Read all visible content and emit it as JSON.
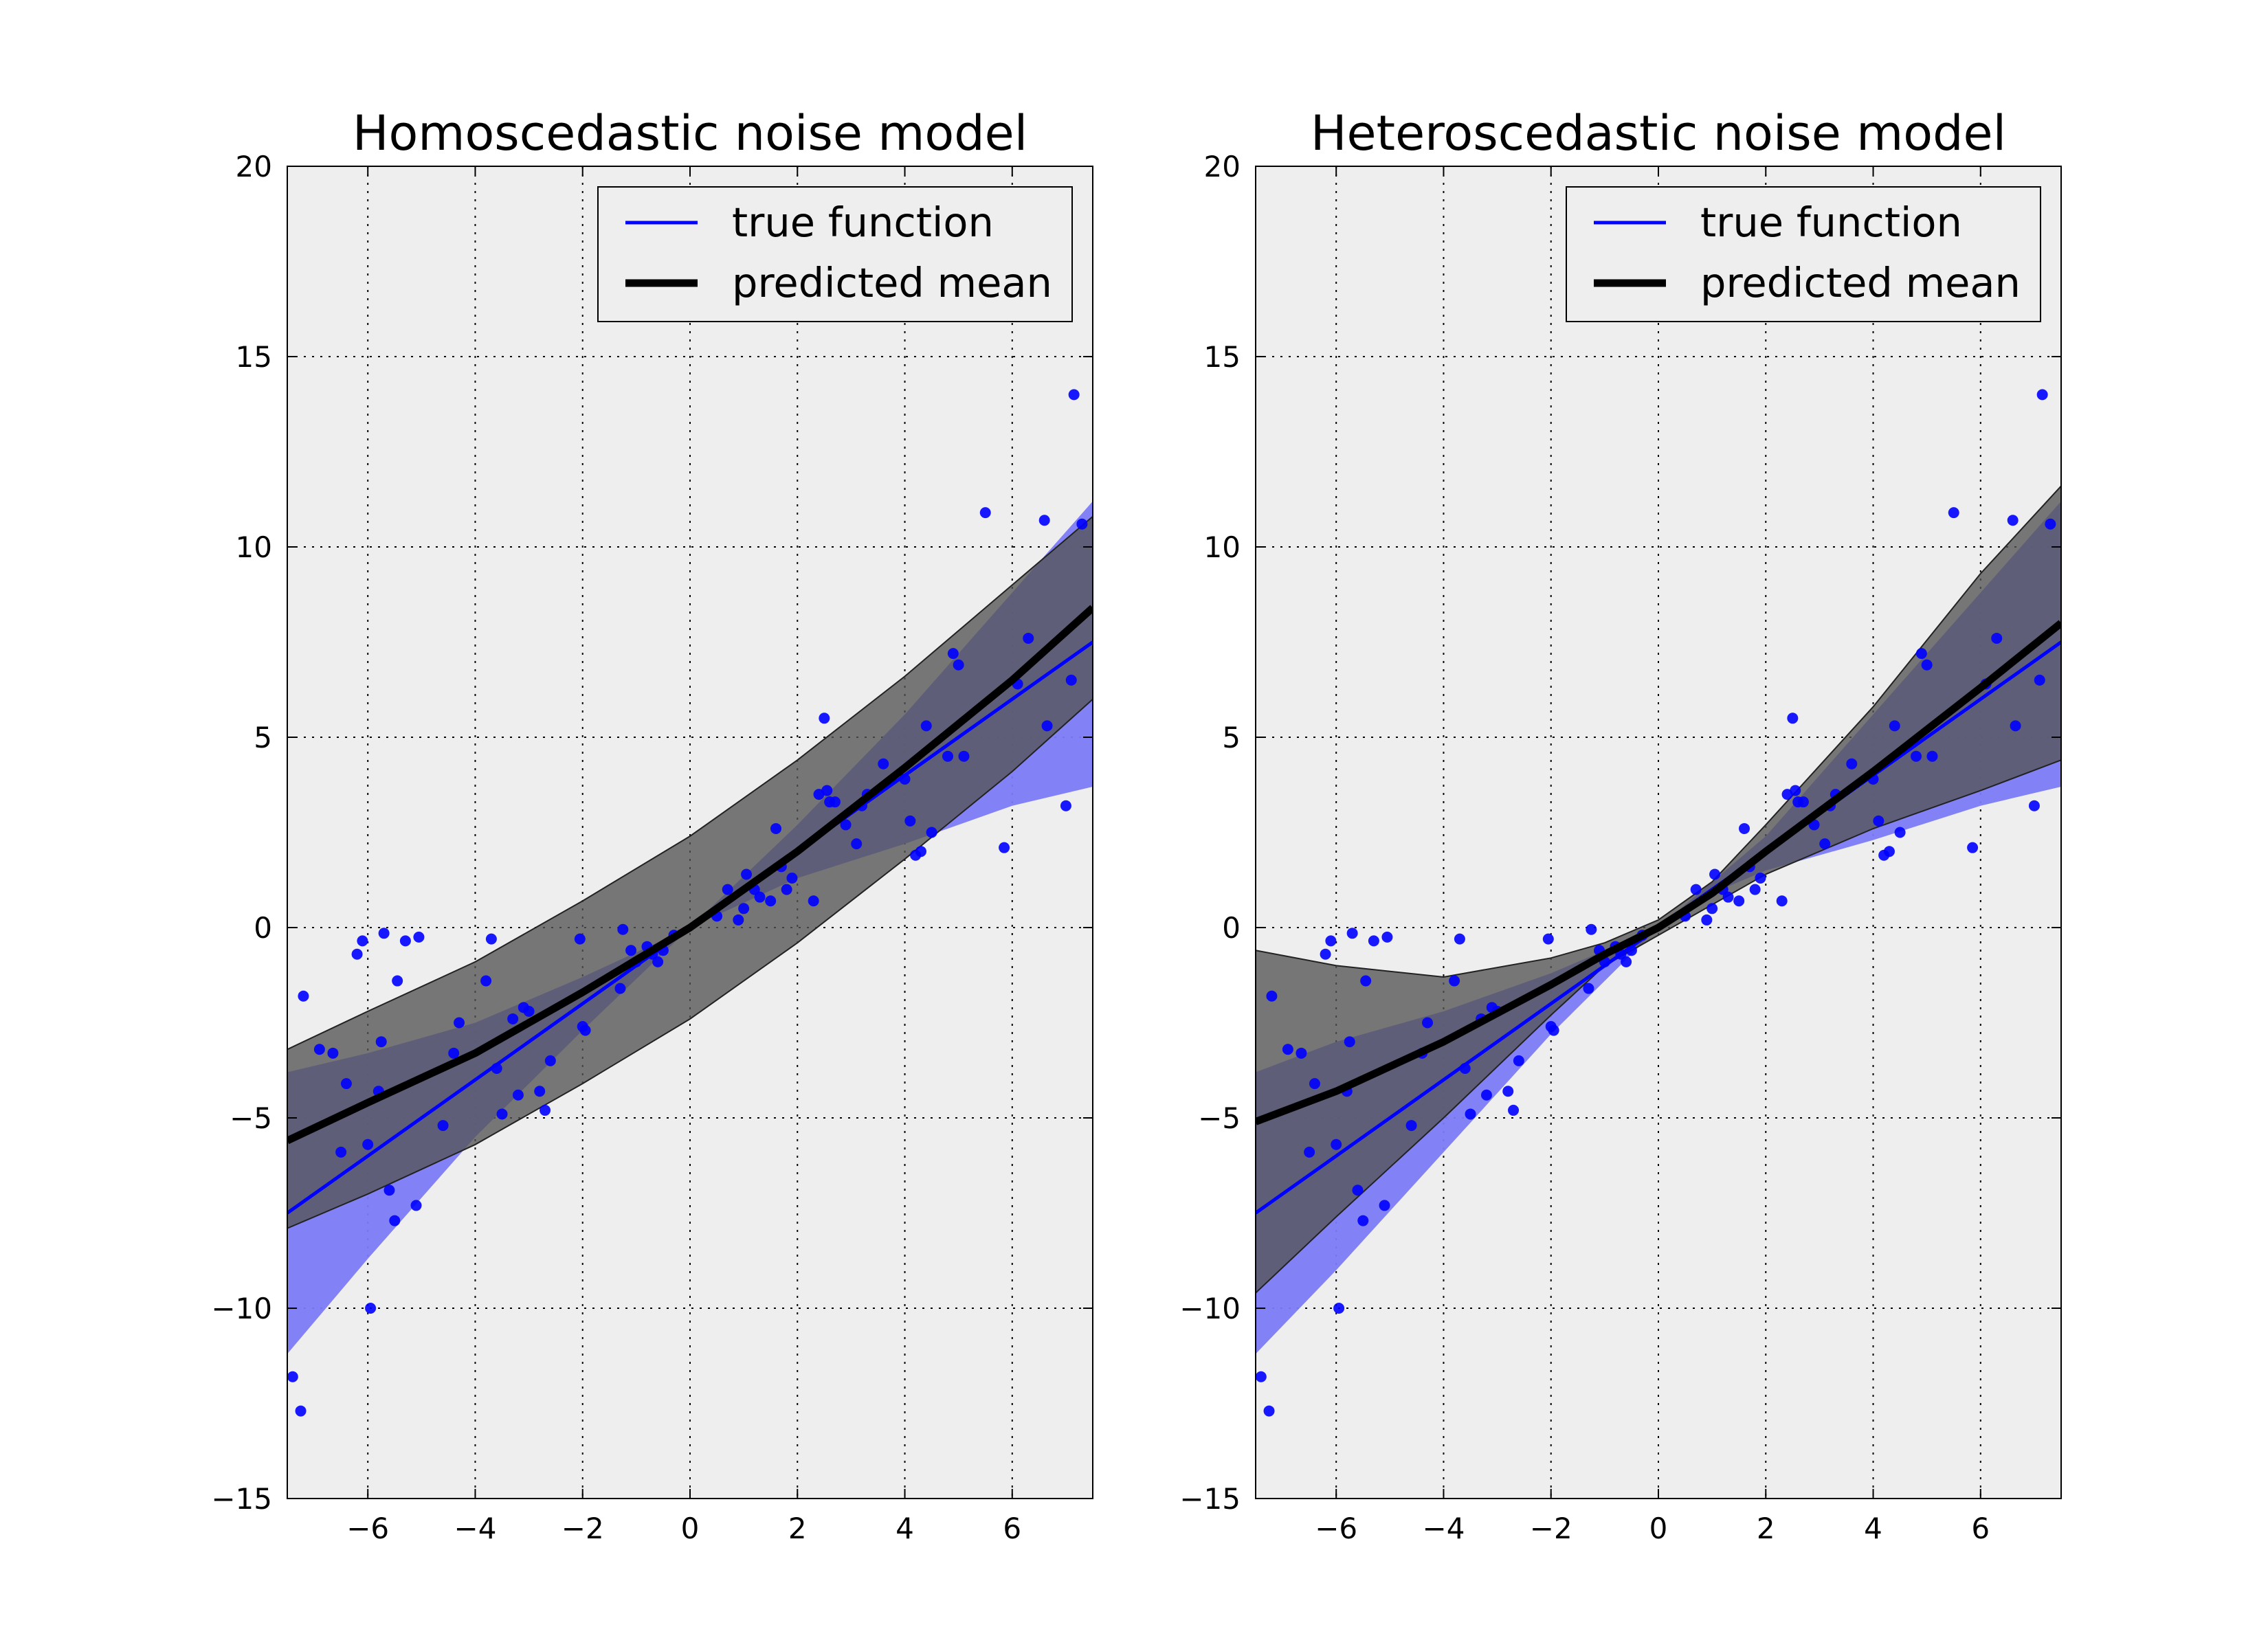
{
  "chart_data": [
    {
      "type": "line",
      "title": "Homoscedastic noise model",
      "xlabel": "",
      "ylabel": "",
      "xlim": [
        -7.5,
        7.5
      ],
      "ylim": [
        -15,
        20
      ],
      "xticks": [
        -6,
        -4,
        -2,
        0,
        2,
        4,
        6
      ],
      "yticks": [
        -15,
        -10,
        -5,
        0,
        5,
        10,
        15,
        20
      ],
      "grid": true,
      "legend_position": "top-right",
      "colors": {
        "true": "#0000ff",
        "mean": "#000000",
        "band_true": "#7b7bf5",
        "band_pred": "#555555",
        "overlap": "#2e2e6e",
        "axes_bg": "#eeeeee"
      },
      "series": [
        {
          "name": "true function",
          "x": [
            -7.5,
            -6,
            -4,
            -2,
            0,
            2,
            4,
            6,
            7.5
          ],
          "y": [
            -7.5,
            -6,
            -4,
            -2,
            0,
            2,
            4,
            6,
            7.5
          ],
          "band": {
            "lower": [
              -11.2,
              -8.7,
              -5.5,
              -2.7,
              0,
              1.3,
              2.2,
              3.2,
              3.7
            ],
            "upper": [
              -3.8,
              -3.3,
              -2.5,
              -1.3,
              0,
              2.7,
              5.6,
              8.8,
              11.2
            ]
          }
        },
        {
          "name": "predicted mean",
          "x": [
            -7.5,
            -6,
            -4,
            -2,
            0,
            2,
            4,
            6,
            7.5
          ],
          "y": [
            -5.6,
            -4.6,
            -3.3,
            -1.7,
            0,
            2.0,
            4.2,
            6.5,
            8.4
          ],
          "band": {
            "lower": [
              -7.9,
              -7.0,
              -5.7,
              -4.1,
              -2.4,
              -0.4,
              1.8,
              4.1,
              6.0
            ],
            "upper": [
              -3.2,
              -2.2,
              -0.9,
              0.7,
              2.4,
              4.4,
              6.6,
              9.0,
              10.8
            ]
          }
        }
      ],
      "scatter": {
        "x": [
          -7.4,
          -7.25,
          -7.2,
          -6.9,
          -6.65,
          -6.5,
          -6.4,
          -6.2,
          -6.1,
          -6.0,
          -5.95,
          -5.8,
          -5.75,
          -5.7,
          -5.6,
          -5.5,
          -5.45,
          -5.3,
          -5.1,
          -5.05,
          -4.6,
          -4.4,
          -4.3,
          -3.8,
          -3.7,
          -3.6,
          -3.5,
          -3.3,
          -3.2,
          -3.1,
          -3.0,
          -2.8,
          -2.7,
          -2.6,
          -2.05,
          -2.0,
          -1.95,
          -1.3,
          -1.25,
          -1.1,
          -1.0,
          -0.8,
          -0.7,
          -0.6,
          -0.5,
          -0.3,
          0.5,
          0.7,
          0.9,
          1.0,
          1.05,
          1.2,
          1.3,
          1.5,
          1.6,
          1.7,
          1.8,
          1.9,
          2.3,
          2.4,
          2.5,
          2.55,
          2.6,
          2.7,
          2.9,
          3.1,
          3.2,
          3.3,
          3.6,
          4.0,
          4.1,
          4.2,
          4.3,
          4.4,
          4.5,
          4.8,
          4.9,
          5.0,
          5.1,
          5.5,
          5.85,
          6.1,
          6.3,
          6.6,
          6.65,
          7.0,
          7.1,
          7.15,
          7.3
        ],
        "y": [
          -11.8,
          -12.7,
          -1.8,
          -3.2,
          -3.3,
          -5.9,
          -4.1,
          -0.7,
          -0.35,
          -5.7,
          -10.0,
          -4.3,
          -3.0,
          -0.15,
          -6.9,
          -7.7,
          -1.4,
          -0.35,
          -7.3,
          -0.25,
          -5.2,
          -3.3,
          -2.5,
          -1.4,
          -0.3,
          -3.7,
          -4.9,
          -2.4,
          -4.4,
          -2.1,
          -2.2,
          -4.3,
          -4.8,
          -3.5,
          -0.3,
          -2.6,
          -2.7,
          -1.6,
          -0.05,
          -0.6,
          -0.9,
          -0.5,
          -0.7,
          -0.9,
          -0.6,
          -0.2,
          0.3,
          1.0,
          0.2,
          0.5,
          1.4,
          1.0,
          0.8,
          0.7,
          2.6,
          1.6,
          1.0,
          1.3,
          0.7,
          3.5,
          5.5,
          3.6,
          3.3,
          3.3,
          2.7,
          2.2,
          3.2,
          3.5,
          4.3,
          3.9,
          2.8,
          1.9,
          2.0,
          5.3,
          2.5,
          4.5,
          7.2,
          6.9,
          4.5,
          10.9,
          2.1,
          6.4,
          7.6,
          10.7,
          5.3,
          3.2,
          6.5,
          14.0,
          10.6
        ]
      }
    },
    {
      "type": "line",
      "title": "Heteroscedastic noise model",
      "xlabel": "",
      "ylabel": "",
      "xlim": [
        -7.5,
        7.5
      ],
      "ylim": [
        -15,
        20
      ],
      "xticks": [
        -6,
        -4,
        -2,
        0,
        2,
        4,
        6
      ],
      "yticks": [
        -15,
        -10,
        -5,
        0,
        5,
        10,
        15,
        20
      ],
      "grid": true,
      "legend_position": "top-right",
      "colors": {
        "true": "#0000ff",
        "mean": "#000000",
        "band_true": "#7b7bf5",
        "band_pred": "#555555",
        "overlap": "#2e2e6e",
        "axes_bg": "#eeeeee"
      },
      "series": [
        {
          "name": "true function",
          "x": [
            -7.5,
            -6,
            -4,
            -2,
            -1,
            0,
            1,
            2,
            4,
            6,
            7.5
          ],
          "y": [
            -7.5,
            -6,
            -4,
            -2,
            -1,
            0,
            1,
            2,
            4,
            6,
            7.5
          ],
          "band": {
            "lower": [
              -11.2,
              -9.0,
              -5.9,
              -2.8,
              -1.4,
              0,
              0.9,
              1.5,
              2.3,
              3.2,
              3.7
            ],
            "upper": [
              -3.8,
              -3.0,
              -2.2,
              -1.2,
              -0.6,
              0,
              1.2,
              2.4,
              5.6,
              8.8,
              11.2
            ]
          }
        },
        {
          "name": "predicted mean",
          "x": [
            -7.5,
            -6,
            -4,
            -2,
            -1,
            0,
            1,
            2,
            4,
            6,
            7.5
          ],
          "y": [
            -5.1,
            -4.3,
            -3.0,
            -1.5,
            -0.7,
            0,
            0.9,
            2.0,
            4.1,
            6.3,
            8.0
          ],
          "band": {
            "lower": [
              -9.6,
              -7.6,
              -5.0,
              -2.3,
              -1.0,
              -0.2,
              0.6,
              1.4,
              2.6,
              3.6,
              4.4
            ],
            "upper": [
              -0.6,
              -1.0,
              -1.3,
              -0.8,
              -0.4,
              0.2,
              1.2,
              2.7,
              5.8,
              9.3,
              11.6
            ]
          }
        }
      ],
      "scatter": {
        "x": [
          -7.4,
          -7.25,
          -7.2,
          -6.9,
          -6.65,
          -6.5,
          -6.4,
          -6.2,
          -6.1,
          -6.0,
          -5.95,
          -5.8,
          -5.75,
          -5.7,
          -5.6,
          -5.5,
          -5.45,
          -5.3,
          -5.1,
          -5.05,
          -4.6,
          -4.4,
          -4.3,
          -3.8,
          -3.7,
          -3.6,
          -3.5,
          -3.3,
          -3.2,
          -3.1,
          -3.0,
          -2.8,
          -2.7,
          -2.6,
          -2.05,
          -2.0,
          -1.95,
          -1.3,
          -1.25,
          -1.1,
          -1.0,
          -0.8,
          -0.7,
          -0.6,
          -0.5,
          -0.3,
          0.5,
          0.7,
          0.9,
          1.0,
          1.05,
          1.2,
          1.3,
          1.5,
          1.6,
          1.7,
          1.8,
          1.9,
          2.3,
          2.4,
          2.5,
          2.55,
          2.6,
          2.7,
          2.9,
          3.1,
          3.2,
          3.3,
          3.6,
          4.0,
          4.1,
          4.2,
          4.3,
          4.4,
          4.5,
          4.8,
          4.9,
          5.0,
          5.1,
          5.5,
          5.85,
          6.1,
          6.3,
          6.6,
          6.65,
          7.0,
          7.1,
          7.15,
          7.3
        ],
        "y": [
          -11.8,
          -12.7,
          -1.8,
          -3.2,
          -3.3,
          -5.9,
          -4.1,
          -0.7,
          -0.35,
          -5.7,
          -10.0,
          -4.3,
          -3.0,
          -0.15,
          -6.9,
          -7.7,
          -1.4,
          -0.35,
          -7.3,
          -0.25,
          -5.2,
          -3.3,
          -2.5,
          -1.4,
          -0.3,
          -3.7,
          -4.9,
          -2.4,
          -4.4,
          -2.1,
          -2.2,
          -4.3,
          -4.8,
          -3.5,
          -0.3,
          -2.6,
          -2.7,
          -1.6,
          -0.05,
          -0.6,
          -0.9,
          -0.5,
          -0.7,
          -0.9,
          -0.6,
          -0.2,
          0.3,
          1.0,
          0.2,
          0.5,
          1.4,
          1.0,
          0.8,
          0.7,
          2.6,
          1.6,
          1.0,
          1.3,
          0.7,
          3.5,
          5.5,
          3.6,
          3.3,
          3.3,
          2.7,
          2.2,
          3.2,
          3.5,
          4.3,
          3.9,
          2.8,
          1.9,
          2.0,
          5.3,
          2.5,
          4.5,
          7.2,
          6.9,
          4.5,
          10.9,
          2.1,
          6.4,
          7.6,
          10.7,
          5.3,
          3.2,
          6.5,
          14.0,
          10.6
        ]
      }
    }
  ]
}
